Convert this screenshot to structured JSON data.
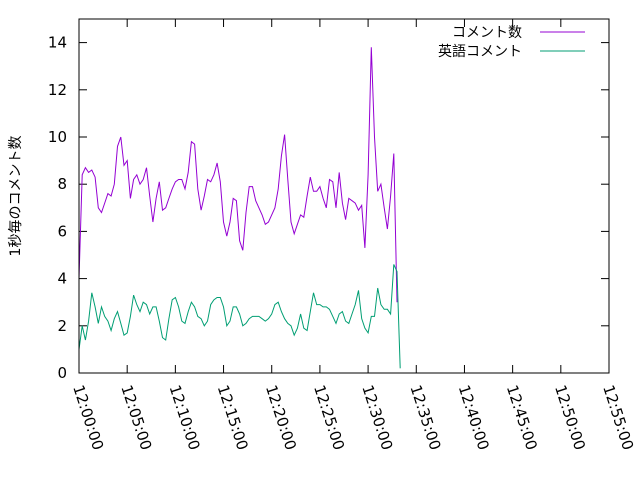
{
  "chart_data": {
    "type": "line",
    "title": "",
    "xlabel": "",
    "ylabel": "1秒毎のコメント数",
    "ylim": [
      0,
      15
    ],
    "yticks": [
      "0",
      "2",
      "4",
      "6",
      "8",
      "10",
      "12",
      "14"
    ],
    "xlim": [
      "12:00:00",
      "12:55:00"
    ],
    "xticks": [
      "12:00:00",
      "12:05:00",
      "12:10:00",
      "12:15:00",
      "12:20:00",
      "12:25:00",
      "12:30:00",
      "12:35:00",
      "12:40:00",
      "12:45:00",
      "12:50:00",
      "12:55:00"
    ],
    "grid": false,
    "legend_position": "top-right",
    "series": [
      {
        "name": "コメント数",
        "color": "#9400d3",
        "points": [
          [
            "12:00:00",
            4.0
          ],
          [
            "12:00:20",
            8.4
          ],
          [
            "12:00:40",
            8.7
          ],
          [
            "12:01:00",
            8.5
          ],
          [
            "12:01:20",
            8.6
          ],
          [
            "12:01:40",
            8.3
          ],
          [
            "12:02:00",
            7.0
          ],
          [
            "12:02:20",
            6.8
          ],
          [
            "12:02:40",
            7.2
          ],
          [
            "12:03:00",
            7.6
          ],
          [
            "12:03:20",
            7.5
          ],
          [
            "12:03:40",
            8.0
          ],
          [
            "12:04:00",
            9.6
          ],
          [
            "12:04:20",
            10.0
          ],
          [
            "12:04:40",
            8.8
          ],
          [
            "12:05:00",
            9.0
          ],
          [
            "12:05:20",
            7.4
          ],
          [
            "12:05:40",
            8.2
          ],
          [
            "12:06:00",
            8.4
          ],
          [
            "12:06:20",
            8.0
          ],
          [
            "12:06:40",
            8.2
          ],
          [
            "12:07:00",
            8.7
          ],
          [
            "12:07:20",
            7.5
          ],
          [
            "12:07:40",
            6.4
          ],
          [
            "12:08:00",
            7.4
          ],
          [
            "12:08:20",
            8.1
          ],
          [
            "12:08:40",
            6.9
          ],
          [
            "12:09:00",
            7.0
          ],
          [
            "12:09:20",
            7.4
          ],
          [
            "12:09:40",
            7.8
          ],
          [
            "12:10:00",
            8.1
          ],
          [
            "12:10:20",
            8.2
          ],
          [
            "12:10:40",
            8.2
          ],
          [
            "12:11:00",
            7.8
          ],
          [
            "12:11:20",
            8.5
          ],
          [
            "12:11:40",
            9.8
          ],
          [
            "12:12:00",
            9.7
          ],
          [
            "12:12:20",
            7.8
          ],
          [
            "12:12:40",
            6.9
          ],
          [
            "12:13:00",
            7.5
          ],
          [
            "12:13:20",
            8.2
          ],
          [
            "12:13:40",
            8.1
          ],
          [
            "12:14:00",
            8.4
          ],
          [
            "12:14:20",
            8.9
          ],
          [
            "12:14:40",
            8.1
          ],
          [
            "12:15:00",
            6.4
          ],
          [
            "12:15:20",
            5.8
          ],
          [
            "12:15:40",
            6.4
          ],
          [
            "12:16:00",
            7.4
          ],
          [
            "12:16:20",
            7.3
          ],
          [
            "12:16:40",
            5.6
          ],
          [
            "12:17:00",
            5.2
          ],
          [
            "12:17:20",
            6.8
          ],
          [
            "12:17:40",
            7.9
          ],
          [
            "12:18:00",
            7.9
          ],
          [
            "12:18:20",
            7.3
          ],
          [
            "12:18:40",
            7.0
          ],
          [
            "12:19:00",
            6.7
          ],
          [
            "12:19:20",
            6.3
          ],
          [
            "12:19:40",
            6.4
          ],
          [
            "12:20:00",
            6.7
          ],
          [
            "12:20:20",
            7.0
          ],
          [
            "12:20:40",
            7.8
          ],
          [
            "12:21:00",
            9.2
          ],
          [
            "12:21:20",
            10.1
          ],
          [
            "12:21:40",
            8.2
          ],
          [
            "12:22:00",
            6.4
          ],
          [
            "12:22:20",
            5.9
          ],
          [
            "12:22:40",
            6.3
          ],
          [
            "12:23:00",
            6.7
          ],
          [
            "12:23:20",
            6.6
          ],
          [
            "12:23:40",
            7.5
          ],
          [
            "12:24:00",
            8.3
          ],
          [
            "12:24:20",
            7.7
          ],
          [
            "12:24:40",
            7.7
          ],
          [
            "12:25:00",
            7.9
          ],
          [
            "12:25:20",
            7.4
          ],
          [
            "12:25:40",
            7.0
          ],
          [
            "12:26:00",
            8.2
          ],
          [
            "12:26:20",
            8.1
          ],
          [
            "12:26:40",
            7.0
          ],
          [
            "12:27:00",
            8.5
          ],
          [
            "12:27:20",
            7.2
          ],
          [
            "12:27:40",
            6.5
          ],
          [
            "12:28:00",
            7.4
          ],
          [
            "12:28:20",
            7.3
          ],
          [
            "12:28:40",
            7.2
          ],
          [
            "12:29:00",
            6.9
          ],
          [
            "12:29:20",
            7.1
          ],
          [
            "12:29:40",
            5.3
          ],
          [
            "12:30:00",
            8.4
          ],
          [
            "12:30:20",
            13.8
          ],
          [
            "12:30:40",
            10.0
          ],
          [
            "12:31:00",
            7.7
          ],
          [
            "12:31:20",
            8.0
          ],
          [
            "12:31:40",
            7.0
          ],
          [
            "12:32:00",
            6.1
          ],
          [
            "12:32:20",
            7.5
          ],
          [
            "12:32:40",
            9.3
          ],
          [
            "12:33:00",
            3.0
          ]
        ]
      },
      {
        "name": "英語コメント",
        "color": "#009e73",
        "points": [
          [
            "12:00:00",
            1.0
          ],
          [
            "12:00:20",
            2.0
          ],
          [
            "12:00:40",
            1.4
          ],
          [
            "12:01:00",
            2.2
          ],
          [
            "12:01:20",
            3.4
          ],
          [
            "12:01:40",
            2.8
          ],
          [
            "12:02:00",
            2.1
          ],
          [
            "12:02:20",
            2.8
          ],
          [
            "12:02:40",
            2.4
          ],
          [
            "12:03:00",
            2.2
          ],
          [
            "12:03:20",
            1.8
          ],
          [
            "12:03:40",
            2.3
          ],
          [
            "12:04:00",
            2.6
          ],
          [
            "12:04:20",
            2.1
          ],
          [
            "12:04:40",
            1.6
          ],
          [
            "12:05:00",
            1.7
          ],
          [
            "12:05:20",
            2.4
          ],
          [
            "12:05:40",
            3.3
          ],
          [
            "12:06:00",
            2.9
          ],
          [
            "12:06:20",
            2.6
          ],
          [
            "12:06:40",
            3.0
          ],
          [
            "12:07:00",
            2.9
          ],
          [
            "12:07:20",
            2.5
          ],
          [
            "12:07:40",
            2.8
          ],
          [
            "12:08:00",
            2.8
          ],
          [
            "12:08:20",
            2.2
          ],
          [
            "12:08:40",
            1.5
          ],
          [
            "12:09:00",
            1.4
          ],
          [
            "12:09:20",
            2.3
          ],
          [
            "12:09:40",
            3.1
          ],
          [
            "12:10:00",
            3.2
          ],
          [
            "12:10:20",
            2.8
          ],
          [
            "12:10:40",
            2.2
          ],
          [
            "12:11:00",
            2.1
          ],
          [
            "12:11:20",
            2.6
          ],
          [
            "12:11:40",
            3.0
          ],
          [
            "12:12:00",
            2.8
          ],
          [
            "12:12:20",
            2.4
          ],
          [
            "12:12:40",
            2.3
          ],
          [
            "12:13:00",
            2.0
          ],
          [
            "12:13:20",
            2.2
          ],
          [
            "12:13:40",
            2.9
          ],
          [
            "12:14:00",
            3.1
          ],
          [
            "12:14:20",
            3.2
          ],
          [
            "12:14:40",
            3.2
          ],
          [
            "12:15:00",
            2.8
          ],
          [
            "12:15:20",
            2.0
          ],
          [
            "12:15:40",
            2.2
          ],
          [
            "12:16:00",
            2.8
          ],
          [
            "12:16:20",
            2.8
          ],
          [
            "12:16:40",
            2.5
          ],
          [
            "12:17:00",
            2.0
          ],
          [
            "12:17:20",
            2.1
          ],
          [
            "12:17:40",
            2.3
          ],
          [
            "12:18:00",
            2.4
          ],
          [
            "12:18:20",
            2.4
          ],
          [
            "12:18:40",
            2.4
          ],
          [
            "12:19:00",
            2.3
          ],
          [
            "12:19:20",
            2.2
          ],
          [
            "12:19:40",
            2.3
          ],
          [
            "12:20:00",
            2.5
          ],
          [
            "12:20:20",
            2.9
          ],
          [
            "12:20:40",
            3.0
          ],
          [
            "12:21:00",
            2.6
          ],
          [
            "12:21:20",
            2.3
          ],
          [
            "12:21:40",
            2.1
          ],
          [
            "12:22:00",
            2.0
          ],
          [
            "12:22:20",
            1.6
          ],
          [
            "12:22:40",
            1.9
          ],
          [
            "12:23:00",
            2.5
          ],
          [
            "12:23:20",
            1.9
          ],
          [
            "12:23:40",
            1.8
          ],
          [
            "12:24:00",
            2.6
          ],
          [
            "12:24:20",
            3.4
          ],
          [
            "12:24:40",
            2.9
          ],
          [
            "12:25:00",
            2.9
          ],
          [
            "12:25:20",
            2.8
          ],
          [
            "12:25:40",
            2.8
          ],
          [
            "12:26:00",
            2.7
          ],
          [
            "12:26:20",
            2.4
          ],
          [
            "12:26:40",
            2.1
          ],
          [
            "12:27:00",
            2.5
          ],
          [
            "12:27:20",
            2.6
          ],
          [
            "12:27:40",
            2.2
          ],
          [
            "12:28:00",
            2.1
          ],
          [
            "12:28:20",
            2.5
          ],
          [
            "12:28:40",
            2.9
          ],
          [
            "12:29:00",
            3.5
          ],
          [
            "12:29:20",
            2.3
          ],
          [
            "12:29:40",
            1.9
          ],
          [
            "12:30:00",
            1.7
          ],
          [
            "12:30:20",
            2.4
          ],
          [
            "12:30:40",
            2.4
          ],
          [
            "12:31:00",
            3.6
          ],
          [
            "12:31:20",
            2.9
          ],
          [
            "12:31:40",
            2.7
          ],
          [
            "12:32:00",
            2.7
          ],
          [
            "12:32:20",
            2.5
          ],
          [
            "12:32:40",
            4.6
          ],
          [
            "12:33:00",
            4.3
          ],
          [
            "12:33:20",
            0.2
          ]
        ]
      }
    ]
  }
}
